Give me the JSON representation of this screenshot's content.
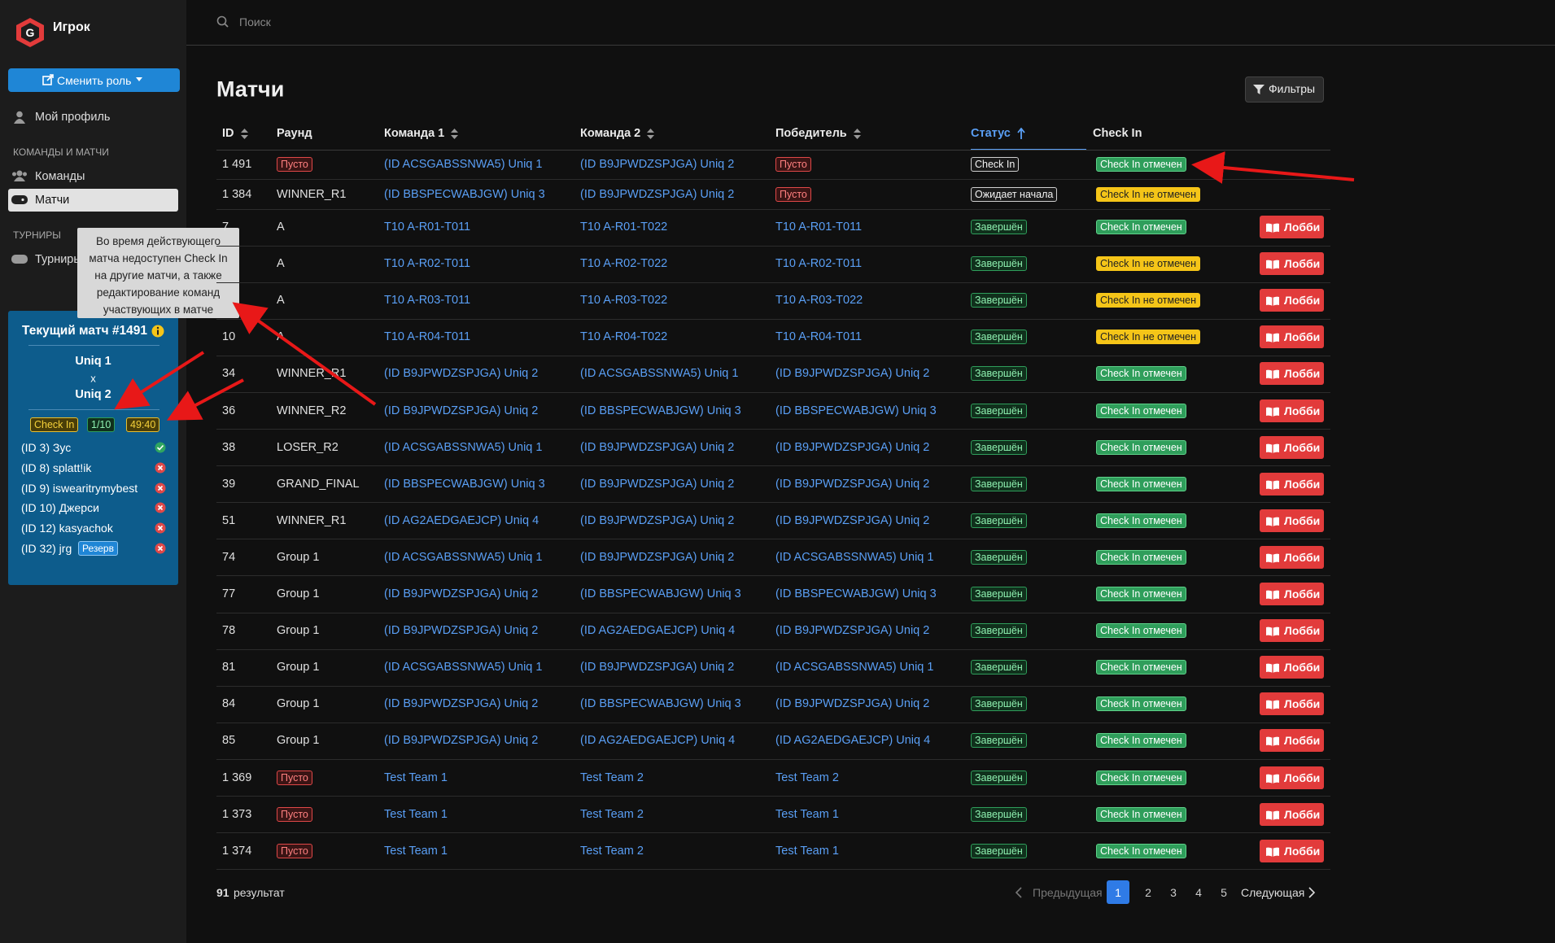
{
  "sidebar": {
    "brand": "Игрок",
    "role_button": "Сменить роль",
    "profile": "Мой профиль",
    "section1": "КОМАНДЫ И МАТЧИ",
    "teams": "Команды",
    "matches": "Матчи",
    "section2": "ТУРНИРЫ",
    "tournaments": "Турниры"
  },
  "tooltip": "Во время действующего матча недоступен Check In на другие матчи, а также редактирование команд участвующих в матче",
  "current_match": {
    "title": "Текущий матч #1491",
    "team1": "Uniq 1",
    "separator": "x",
    "team2": "Uniq 2",
    "badges": [
      {
        "text": "Check In",
        "kind": "yellow-outline"
      },
      {
        "text": "1/10",
        "kind": "green"
      },
      {
        "text": "49:40",
        "kind": "yellow-outline"
      }
    ],
    "players": [
      {
        "name": "(ID 3) Зус",
        "ready": true
      },
      {
        "name": "(ID 8) splatt!ik",
        "ready": false
      },
      {
        "name": "(ID 9) iswearitrymybest",
        "ready": false
      },
      {
        "name": "(ID 10) Джерси",
        "ready": false
      },
      {
        "name": "(ID 12) kasyachok",
        "ready": false
      },
      {
        "name": "(ID 32) jrg",
        "ready": false,
        "badge": "Резерв"
      }
    ]
  },
  "search": "Поиск",
  "title": "Матчи",
  "filters": "Фильтры",
  "table": {
    "headers": [
      "ID",
      "Раунд",
      "Команда 1",
      "Команда 2",
      "Победитель",
      "Статус",
      "Check In"
    ],
    "rows": [
      {
        "id": "1 491",
        "round": {
          "text": "Пусто",
          "kind": "red"
        },
        "team1": "(ID ACSGABSSNWA5) Uniq 1",
        "team2": "(ID B9JPWDZSPJGA) Uniq 2",
        "winner": {
          "text": "Пусто",
          "kind": "red"
        },
        "status": {
          "text": "Check In",
          "kind": "white"
        },
        "checkin": {
          "text": "Check In отмечен",
          "kind": "green-fill"
        }
      },
      {
        "id": "1 384",
        "round": "WINNER_R1",
        "team1": "(ID BBSPECWABJGW) Uniq 3",
        "team2": "(ID B9JPWDZSPJGA) Uniq 2",
        "winner": {
          "text": "Пусто",
          "kind": "red"
        },
        "status": {
          "text": "Ожидает начала",
          "kind": "white"
        },
        "checkin": {
          "text": "Check In не отмечен",
          "kind": "yellow-fill"
        }
      },
      {
        "id": "7",
        "round": "A",
        "team1": "T10 A-R01-T011",
        "team2": "T10 A-R01-T022",
        "winner": "T10 A-R01-T011",
        "status": {
          "text": "Завершён",
          "kind": "green"
        },
        "checkin": {
          "text": "Check In отмечен",
          "kind": "green-fill"
        },
        "lobby": "Лобби"
      },
      {
        "id": null,
        "round": "A",
        "team1": "T10 A-R02-T011",
        "team2": "T10 A-R02-T022",
        "winner": "T10 A-R02-T011",
        "status": {
          "text": "Завершён",
          "kind": "green"
        },
        "checkin": {
          "text": "Check In не отмечен",
          "kind": "yellow-fill"
        },
        "lobby": "Лобби"
      },
      {
        "id": null,
        "round": "A",
        "team1": "T10 A-R03-T011",
        "team2": "T10 A-R03-T022",
        "winner": "T10 A-R03-T022",
        "status": {
          "text": "Завершён",
          "kind": "green"
        },
        "checkin": {
          "text": "Check In не отмечен",
          "kind": "yellow-fill"
        },
        "lobby": "Лобби"
      },
      {
        "id": "10",
        "round": "A",
        "team1": "T10 A-R04-T011",
        "team2": "T10 A-R04-T022",
        "winner": "T10 A-R04-T011",
        "status": {
          "text": "Завершён",
          "kind": "green"
        },
        "checkin": {
          "text": "Check In не отмечен",
          "kind": "yellow-fill"
        },
        "lobby": "Лобби"
      },
      {
        "id": "34",
        "round": "WINNER_R1",
        "team1": "(ID B9JPWDZSPJGA) Uniq 2",
        "team2": "(ID ACSGABSSNWA5) Uniq 1",
        "winner": "(ID B9JPWDZSPJGA) Uniq 2",
        "status": {
          "text": "Завершён",
          "kind": "green"
        },
        "checkin": {
          "text": "Check In отмечен",
          "kind": "green-fill"
        },
        "lobby": "Лобби"
      },
      {
        "id": "36",
        "round": "WINNER_R2",
        "team1": "(ID B9JPWDZSPJGA) Uniq 2",
        "team2": "(ID BBSPECWABJGW) Uniq 3",
        "winner": "(ID BBSPECWABJGW) Uniq 3",
        "status": {
          "text": "Завершён",
          "kind": "green"
        },
        "checkin": {
          "text": "Check In отмечен",
          "kind": "green-fill"
        },
        "lobby": "Лобби"
      },
      {
        "id": "38",
        "round": "LOSER_R2",
        "team1": "(ID ACSGABSSNWA5) Uniq 1",
        "team2": "(ID B9JPWDZSPJGA) Uniq 2",
        "winner": "(ID B9JPWDZSPJGA) Uniq 2",
        "status": {
          "text": "Завершён",
          "kind": "green"
        },
        "checkin": {
          "text": "Check In отмечен",
          "kind": "green-fill"
        },
        "lobby": "Лобби"
      },
      {
        "id": "39",
        "round": "GRAND_FINAL",
        "team1": "(ID BBSPECWABJGW) Uniq 3",
        "team2": "(ID B9JPWDZSPJGA) Uniq 2",
        "winner": "(ID B9JPWDZSPJGA) Uniq 2",
        "status": {
          "text": "Завершён",
          "kind": "green"
        },
        "checkin": {
          "text": "Check In отмечен",
          "kind": "green-fill"
        },
        "lobby": "Лобби"
      },
      {
        "id": "51",
        "round": "WINNER_R1",
        "team1": "(ID AG2AEDGAEJCP) Uniq 4",
        "team2": "(ID B9JPWDZSPJGA) Uniq 2",
        "winner": "(ID B9JPWDZSPJGA) Uniq 2",
        "status": {
          "text": "Завершён",
          "kind": "green"
        },
        "checkin": {
          "text": "Check In отмечен",
          "kind": "green-fill"
        },
        "lobby": "Лобби"
      },
      {
        "id": "74",
        "round": "Group 1",
        "team1": "(ID ACSGABSSNWA5) Uniq 1",
        "team2": "(ID B9JPWDZSPJGA) Uniq 2",
        "winner": "(ID ACSGABSSNWA5) Uniq 1",
        "status": {
          "text": "Завершён",
          "kind": "green"
        },
        "checkin": {
          "text": "Check In отмечен",
          "kind": "green-fill"
        },
        "lobby": "Лобби"
      },
      {
        "id": "77",
        "round": "Group 1",
        "team1": "(ID B9JPWDZSPJGA) Uniq 2",
        "team2": "(ID BBSPECWABJGW) Uniq 3",
        "winner": "(ID BBSPECWABJGW) Uniq 3",
        "status": {
          "text": "Завершён",
          "kind": "green"
        },
        "checkin": {
          "text": "Check In отмечен",
          "kind": "green-fill"
        },
        "lobby": "Лобби"
      },
      {
        "id": "78",
        "round": "Group 1",
        "team1": "(ID B9JPWDZSPJGA) Uniq 2",
        "team2": "(ID AG2AEDGAEJCP) Uniq 4",
        "winner": "(ID B9JPWDZSPJGA) Uniq 2",
        "status": {
          "text": "Завершён",
          "kind": "green"
        },
        "checkin": {
          "text": "Check In отмечен",
          "kind": "green-fill"
        },
        "lobby": "Лобби"
      },
      {
        "id": "81",
        "round": "Group 1",
        "team1": "(ID ACSGABSSNWA5) Uniq 1",
        "team2": "(ID B9JPWDZSPJGA) Uniq 2",
        "winner": "(ID ACSGABSSNWA5) Uniq 1",
        "status": {
          "text": "Завершён",
          "kind": "green"
        },
        "checkin": {
          "text": "Check In отмечен",
          "kind": "green-fill"
        },
        "lobby": "Лобби"
      },
      {
        "id": "84",
        "round": "Group 1",
        "team1": "(ID B9JPWDZSPJGA) Uniq 2",
        "team2": "(ID BBSPECWABJGW) Uniq 3",
        "winner": "(ID B9JPWDZSPJGA) Uniq 2",
        "status": {
          "text": "Завершён",
          "kind": "green"
        },
        "checkin": {
          "text": "Check In отмечен",
          "kind": "green-fill"
        },
        "lobby": "Лобби"
      },
      {
        "id": "85",
        "round": "Group 1",
        "team1": "(ID B9JPWDZSPJGA) Uniq 2",
        "team2": "(ID AG2AEDGAEJCP) Uniq 4",
        "winner": "(ID AG2AEDGAEJCP) Uniq 4",
        "status": {
          "text": "Завершён",
          "kind": "green"
        },
        "checkin": {
          "text": "Check In отмечен",
          "kind": "green-fill"
        },
        "lobby": "Лобби"
      },
      {
        "id": "1 369",
        "round": {
          "text": "Пусто",
          "kind": "red"
        },
        "team1": "Test Team 1",
        "team2": "Test Team 2",
        "winner": "Test Team 2",
        "status": {
          "text": "Завершён",
          "kind": "green"
        },
        "checkin": {
          "text": "Check In отмечен",
          "kind": "green-fill"
        },
        "lobby": "Лобби"
      },
      {
        "id": "1 373",
        "round": {
          "text": "Пусто",
          "kind": "red"
        },
        "team1": "Test Team 1",
        "team2": "Test Team 2",
        "winner": "Test Team 1",
        "status": {
          "text": "Завершён",
          "kind": "green"
        },
        "checkin": {
          "text": "Check In отмечен",
          "kind": "green-fill"
        },
        "lobby": "Лобби"
      },
      {
        "id": "1 374",
        "round": {
          "text": "Пусто",
          "kind": "red"
        },
        "team1": "Test Team 1",
        "team2": "Test Team 2",
        "winner": "Test Team 1",
        "status": {
          "text": "Завершён",
          "kind": "green"
        },
        "checkin": {
          "text": "Check In отмечен",
          "kind": "green-fill"
        },
        "lobby": "Лобби"
      }
    ]
  },
  "footer": {
    "count": "91",
    "count_label": "результат",
    "prev": "Предыдущая",
    "pages": [
      "1",
      "2",
      "3",
      "4",
      "5"
    ],
    "next": "Следующая"
  }
}
